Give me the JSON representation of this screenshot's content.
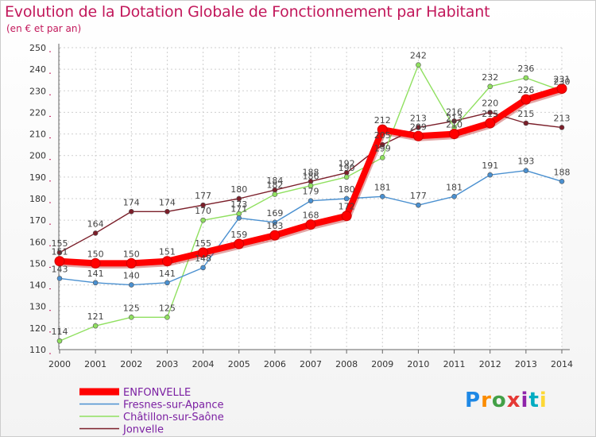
{
  "title": "Evolution de la Dotation Globale de Fonctionnement par Habitant",
  "subtitle": "(en € et par an)",
  "logo": {
    "text": "Proxiti",
    "colors": [
      "#1e88e5",
      "#fb8c00",
      "#43a047",
      "#e53935",
      "#8e24aa",
      "#00acc1",
      "#fdd835"
    ]
  },
  "chart_data": {
    "type": "line",
    "x": [
      "2000",
      "2001",
      "2002",
      "2003",
      "2004",
      "2005",
      "2006",
      "2007",
      "2008",
      "2009",
      "2010",
      "2011",
      "2012",
      "2013",
      "2014"
    ],
    "ylim": [
      110,
      250
    ],
    "yticks": [
      110,
      120,
      130,
      140,
      150,
      160,
      170,
      180,
      190,
      200,
      210,
      220,
      230,
      240,
      250
    ],
    "grid": true,
    "legend_position": "bottom-left",
    "series": [
      {
        "name": "Jonvelle",
        "color": "#7b1f2a",
        "values": [
          155,
          164,
          174,
          174,
          177,
          180,
          184,
          188,
          192,
          205,
          213,
          216,
          220,
          215,
          213
        ]
      },
      {
        "name": "Châtillon-sur-Saône",
        "color": "#90e060",
        "values": [
          114,
          121,
          125,
          125,
          170,
          173,
          182,
          186,
          190,
          199,
          242,
          213,
          232,
          236,
          230
        ]
      },
      {
        "name": "Fresnes-sur-Apance",
        "color": "#4a90d0",
        "values": [
          143,
          141,
          140,
          141,
          148,
          171,
          169,
          179,
          180,
          181,
          177,
          181,
          191,
          193,
          188
        ]
      },
      {
        "name": "ENFONVELLE",
        "color": "#ff0000",
        "values": [
          151,
          150,
          150,
          151,
          155,
          159,
          163,
          168,
          172,
          212,
          209,
          210,
          215,
          226,
          231
        ]
      }
    ],
    "legend_order": [
      "ENFONVELLE",
      "Fresnes-sur-Apance",
      "Châtillon-sur-Saône",
      "Jonvelle"
    ]
  }
}
